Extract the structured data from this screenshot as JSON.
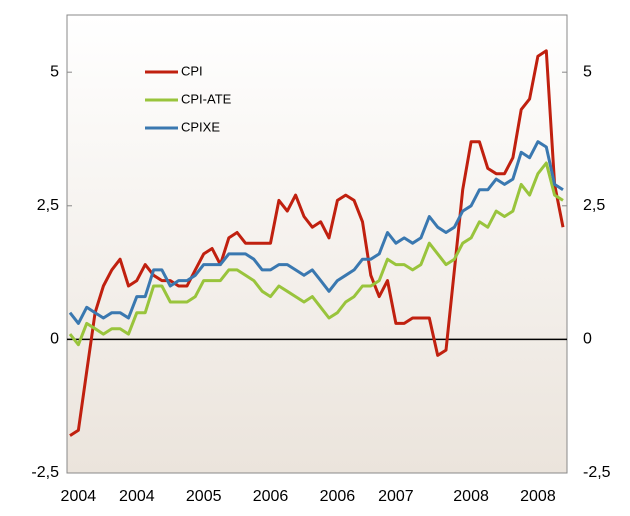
{
  "chart_data": {
    "type": "line",
    "categories": [
      null,
      "2004",
      null,
      null,
      null,
      null,
      null,
      null,
      "2004",
      null,
      null,
      null,
      null,
      null,
      null,
      null,
      "2005",
      null,
      null,
      null,
      null,
      null,
      null,
      null,
      "2006",
      null,
      null,
      null,
      null,
      null,
      null,
      null,
      "2006",
      null,
      null,
      null,
      null,
      null,
      null,
      "2007",
      null,
      null,
      null,
      null,
      null,
      null,
      null,
      null,
      "2008",
      null,
      null,
      null,
      null,
      null,
      null,
      null,
      "2008",
      null,
      null,
      null
    ],
    "series": [
      {
        "name": "CPI",
        "color": "#c0200f",
        "values": [
          -1.8,
          -1.7,
          -0.6,
          0.5,
          1.0,
          1.3,
          1.5,
          1.0,
          1.1,
          1.4,
          1.2,
          1.1,
          1.1,
          1.0,
          1.0,
          1.3,
          1.6,
          1.7,
          1.4,
          1.9,
          2.0,
          1.8,
          1.8,
          1.8,
          1.8,
          2.6,
          2.4,
          2.7,
          2.3,
          2.1,
          2.2,
          1.9,
          2.6,
          2.7,
          2.6,
          2.2,
          1.2,
          0.8,
          1.1,
          0.3,
          0.3,
          0.4,
          0.4,
          0.4,
          -0.3,
          -0.2,
          1.3,
          2.8,
          3.7,
          3.7,
          3.2,
          3.1,
          3.1,
          3.4,
          4.3,
          4.5,
          5.3,
          5.4,
          2.9,
          2.1
        ]
      },
      {
        "name": "CPI-ATE",
        "color": "#99c43c",
        "values": [
          0.1,
          -0.1,
          0.3,
          0.2,
          0.1,
          0.2,
          0.2,
          0.1,
          0.5,
          0.5,
          1.0,
          1.0,
          0.7,
          0.7,
          0.7,
          0.8,
          1.1,
          1.1,
          1.1,
          1.3,
          1.3,
          1.2,
          1.1,
          0.9,
          0.8,
          1.0,
          0.9,
          0.8,
          0.7,
          0.8,
          0.6,
          0.4,
          0.5,
          0.7,
          0.8,
          1.0,
          1.0,
          1.1,
          1.5,
          1.4,
          1.4,
          1.3,
          1.4,
          1.8,
          1.6,
          1.4,
          1.5,
          1.8,
          1.9,
          2.2,
          2.1,
          2.4,
          2.3,
          2.4,
          2.9,
          2.7,
          3.1,
          3.3,
          2.7,
          2.6
        ]
      },
      {
        "name": "CPIXE",
        "color": "#3a78b0",
        "values": [
          0.5,
          0.3,
          0.6,
          0.5,
          0.4,
          0.5,
          0.5,
          0.4,
          0.8,
          0.8,
          1.3,
          1.3,
          1.0,
          1.1,
          1.1,
          1.2,
          1.4,
          1.4,
          1.4,
          1.6,
          1.6,
          1.6,
          1.5,
          1.3,
          1.3,
          1.4,
          1.4,
          1.3,
          1.2,
          1.3,
          1.1,
          0.9,
          1.1,
          1.2,
          1.3,
          1.5,
          1.5,
          1.6,
          2.0,
          1.8,
          1.9,
          1.8,
          1.9,
          2.3,
          2.1,
          2.0,
          2.1,
          2.4,
          2.5,
          2.8,
          2.8,
          3.0,
          2.9,
          3.0,
          3.5,
          3.4,
          3.7,
          3.6,
          2.9,
          2.8
        ]
      }
    ],
    "ylim": [
      -2.5,
      6.07
    ],
    "yticks": [
      {
        "value": -2.5,
        "label": "-2,5"
      },
      0,
      {
        "value": 2.5,
        "label": "2,5"
      },
      5
    ],
    "legend": "upper left"
  }
}
